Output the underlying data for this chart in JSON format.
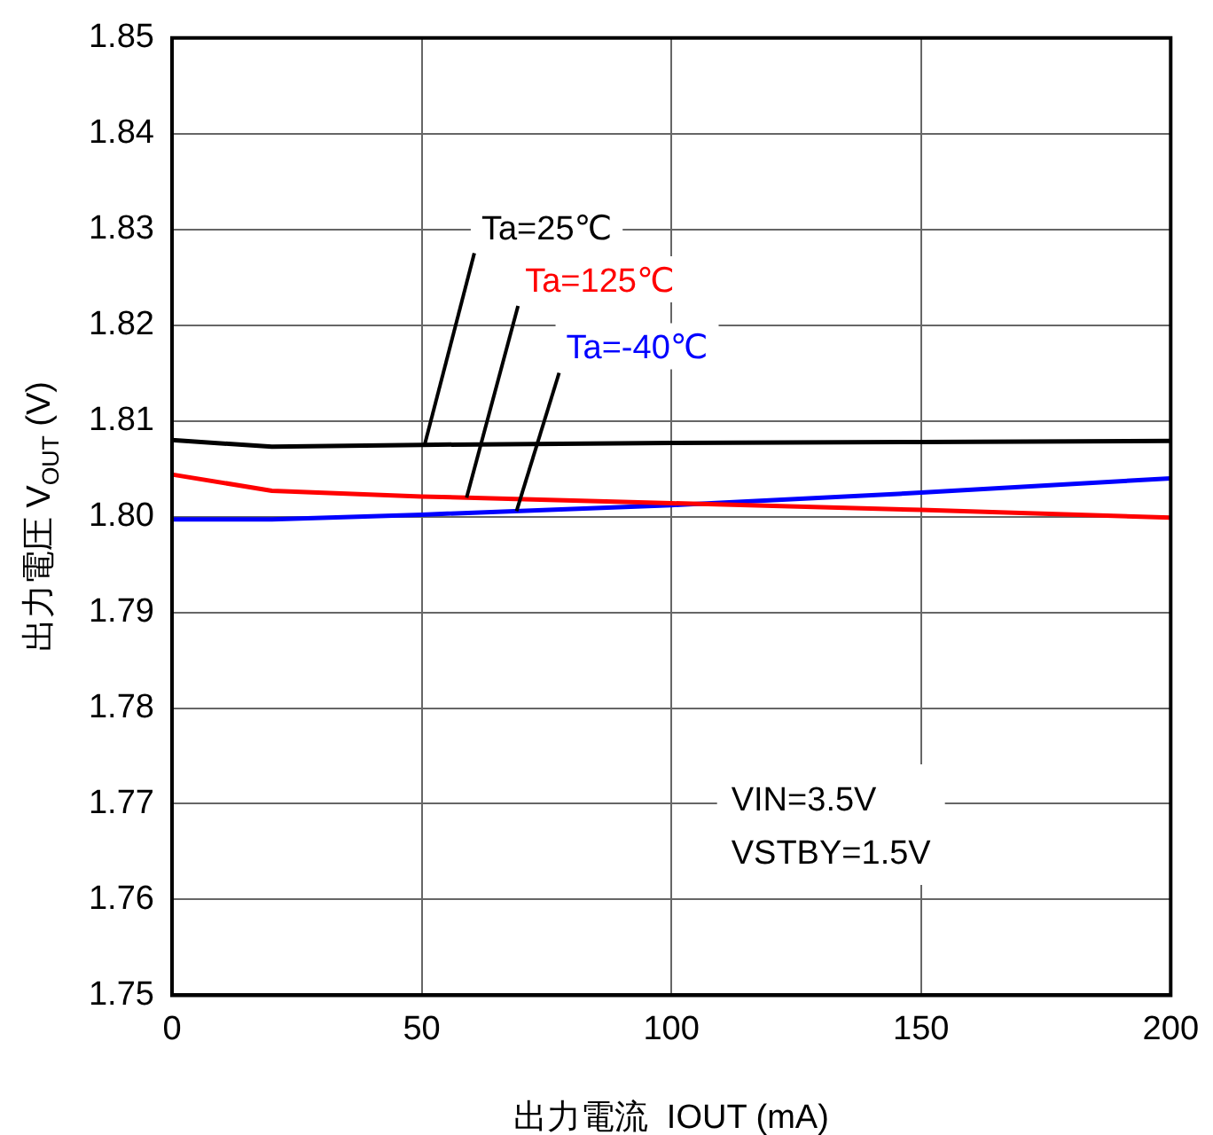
{
  "chart_data": {
    "type": "line",
    "xlabel": "出力電流  IOUT (mA)",
    "ylabel": "出力電圧 V$_{OUT}$ (V)",
    "x": [
      0,
      20,
      50,
      100,
      150,
      200
    ],
    "series": [
      {
        "name": "Ta=25℃",
        "color": "#000000",
        "values": [
          1.808,
          1.8073,
          1.8075,
          1.8077,
          1.8078,
          1.8079
        ]
      },
      {
        "name": "Ta=125℃",
        "color": "#ff0000",
        "values": [
          1.8044,
          1.8027,
          1.8021,
          1.8014,
          1.8007,
          1.7999
        ]
      },
      {
        "name": "Ta=-40℃",
        "color": "#0000ff",
        "values": [
          1.7997,
          1.7997,
          1.8002,
          1.8012,
          1.8025,
          1.804
        ]
      }
    ],
    "xlim": [
      0,
      200
    ],
    "xticks": [
      0,
      50,
      100,
      150,
      200
    ],
    "ylim": [
      1.75,
      1.85
    ],
    "yticks": [
      1.75,
      1.76,
      1.77,
      1.78,
      1.79,
      {
        "value": 1.8,
        "label": "1.80"
      },
      1.81,
      1.82,
      1.83,
      1.84,
      1.85
    ],
    "grid": true,
    "legend": false,
    "marker": "none",
    "line_style": "solid",
    "annotations": [
      "VIN=3.5V",
      "VSTBY=1.5V"
    ]
  }
}
